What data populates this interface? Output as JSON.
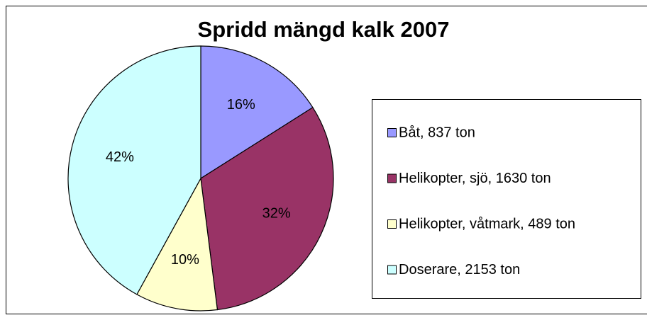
{
  "chart_data": {
    "type": "pie",
    "title": "Spridd mängd kalk 2007",
    "categories": [
      "Båt, 837 ton",
      "Helikopter, sjö, 1630 ton",
      "Helikopter, våtmark, 489 ton",
      "Doserare, 2153 ton"
    ],
    "values": [
      16,
      32,
      10,
      42
    ],
    "value_labels": [
      "16%",
      "32%",
      "10%",
      "42%"
    ],
    "colors": [
      "#9999ff",
      "#993366",
      "#ffffcc",
      "#ccffff"
    ],
    "legend": "right"
  }
}
